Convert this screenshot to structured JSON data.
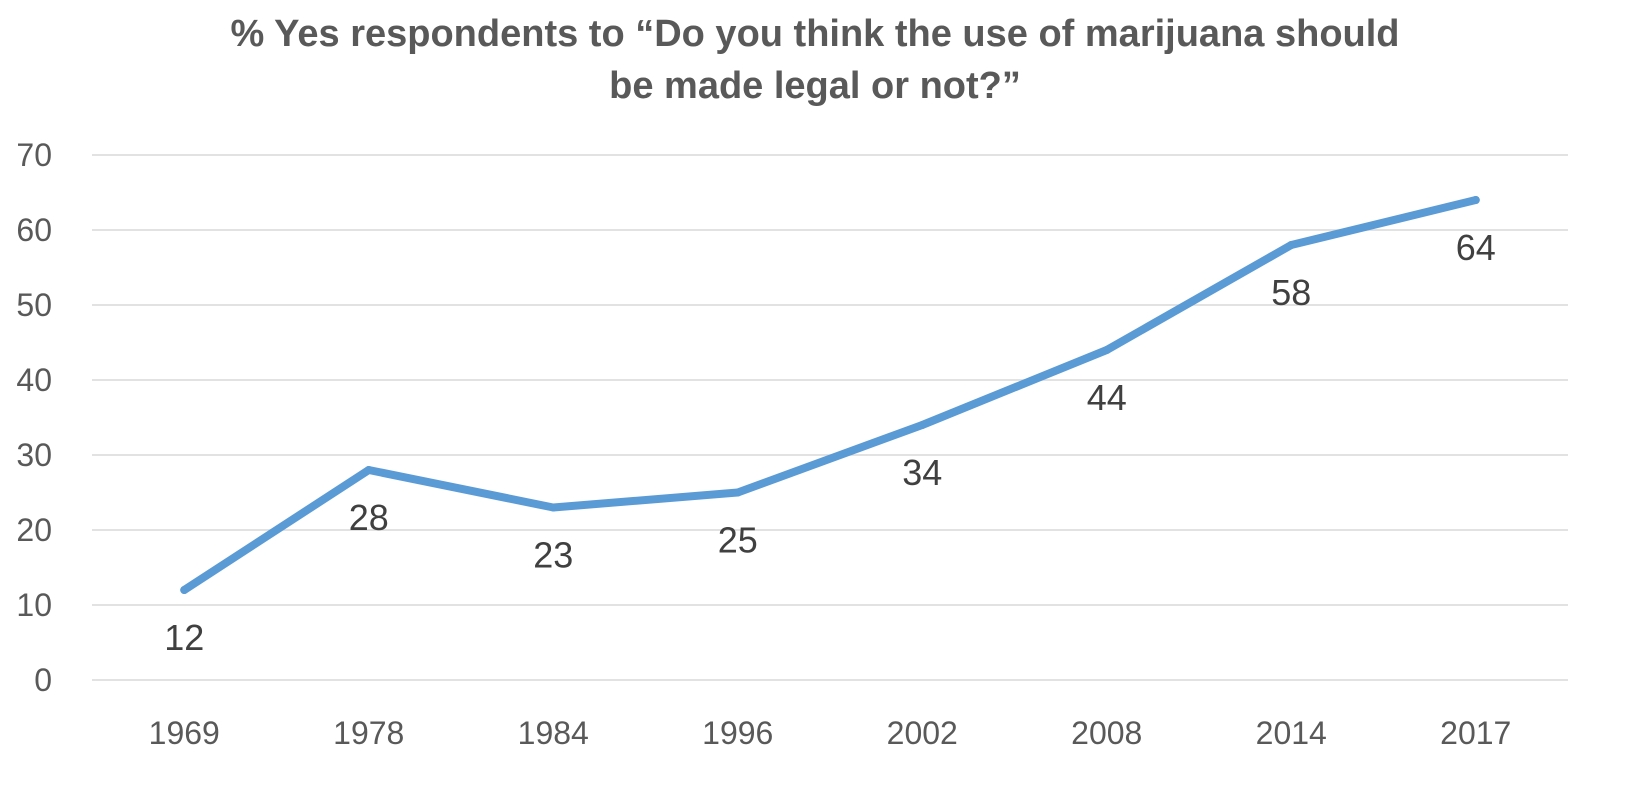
{
  "chart_data": {
    "type": "line",
    "title_lines": [
      "% Yes respondents to  “Do you think the use of marijuana should",
      "be made legal or not?”"
    ],
    "categories": [
      "1969",
      "1978",
      "1984",
      "1996",
      "2002",
      "2008",
      "2014",
      "2017"
    ],
    "series": [
      {
        "values": [
          12,
          28,
          23,
          25,
          34,
          44,
          58,
          64
        ],
        "color": "#5b9bd5"
      }
    ],
    "ylim": [
      0,
      70
    ],
    "yticks": [
      0,
      10,
      20,
      30,
      40,
      50,
      60,
      70
    ],
    "data_labels": true,
    "grid": true,
    "legend": "none"
  }
}
